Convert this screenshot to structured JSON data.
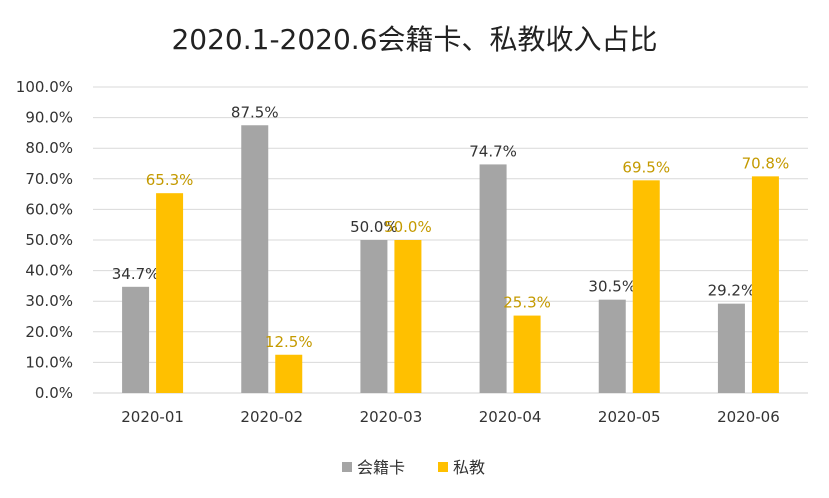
{
  "chart_data": {
    "type": "bar",
    "title": "2020.1-2020.6会籍卡、私教收入占比",
    "xlabel": "",
    "ylabel": "",
    "categories": [
      "2020-01",
      "2020-02",
      "2020-03",
      "2020-04",
      "2020-05",
      "2020-06"
    ],
    "ylim": [
      0,
      100
    ],
    "yticks": [
      "0.0%",
      "10.0%",
      "20.0%",
      "30.0%",
      "40.0%",
      "50.0%",
      "60.0%",
      "70.0%",
      "80.0%",
      "90.0%",
      "100.0%"
    ],
    "grid": true,
    "legend_position": "bottom",
    "series": [
      {
        "name": "会籍卡",
        "color": "#a5a5a5",
        "label_color": "#333333",
        "values": [
          34.7,
          87.5,
          50.0,
          74.7,
          30.5,
          29.2
        ],
        "labels": [
          "34.7%",
          "87.5%",
          "50.0%",
          "74.7%",
          "30.5%",
          "29.2%"
        ]
      },
      {
        "name": "私教",
        "color": "#ffc000",
        "label_color": "#c49a00",
        "values": [
          65.3,
          12.5,
          50.0,
          25.3,
          69.5,
          70.8
        ],
        "labels": [
          "65.3%",
          "12.5%",
          "50.0%",
          "25.3%",
          "69.5%",
          "70.8%"
        ]
      }
    ]
  }
}
